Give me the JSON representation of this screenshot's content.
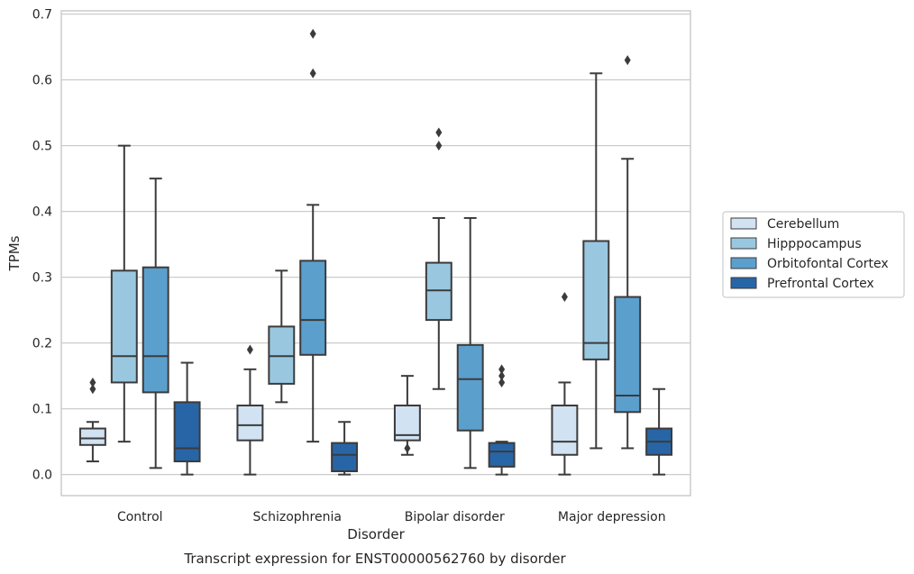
{
  "chart_data": {
    "type": "box",
    "title": "Transcript expression for ENST00000562760 by disorder",
    "xlabel": "Disorder",
    "ylabel": "TPMs",
    "ylim": [
      -0.032,
      0.705
    ],
    "yticks": [
      "0.0",
      "0.1",
      "0.2",
      "0.3",
      "0.4",
      "0.5",
      "0.6",
      "0.7"
    ],
    "grid": true,
    "legend_position": "right",
    "categories": [
      "Control",
      "Schizophrenia",
      "Bipolar disorder",
      "Major depression"
    ],
    "series": [
      {
        "name": "Cerebellum",
        "color": "#d1e2f2",
        "boxes": [
          {
            "whisker_low": 0.02,
            "q1": 0.045,
            "median": 0.055,
            "q3": 0.07,
            "whisker_high": 0.08,
            "outliers": [
              0.13,
              0.14
            ]
          },
          {
            "whisker_low": 0.0,
            "q1": 0.052,
            "median": 0.075,
            "q3": 0.105,
            "whisker_high": 0.16,
            "outliers": [
              0.19
            ]
          },
          {
            "whisker_low": 0.03,
            "q1": 0.052,
            "median": 0.06,
            "q3": 0.105,
            "whisker_high": 0.15,
            "outliers": [
              0.04
            ]
          },
          {
            "whisker_low": 0.0,
            "q1": 0.03,
            "median": 0.05,
            "q3": 0.105,
            "whisker_high": 0.14,
            "outliers": [
              0.27
            ]
          }
        ]
      },
      {
        "name": "Hipppocampus",
        "color": "#9ac7e0",
        "boxes": [
          {
            "whisker_low": 0.05,
            "q1": 0.14,
            "median": 0.18,
            "q3": 0.31,
            "whisker_high": 0.5,
            "outliers": []
          },
          {
            "whisker_low": 0.11,
            "q1": 0.138,
            "median": 0.18,
            "q3": 0.225,
            "whisker_high": 0.31,
            "outliers": []
          },
          {
            "whisker_low": 0.13,
            "q1": 0.235,
            "median": 0.28,
            "q3": 0.322,
            "whisker_high": 0.39,
            "outliers": [
              0.5,
              0.52
            ]
          },
          {
            "whisker_low": 0.04,
            "q1": 0.175,
            "median": 0.2,
            "q3": 0.355,
            "whisker_high": 0.61,
            "outliers": []
          }
        ]
      },
      {
        "name": "Orbitofontal Cortex",
        "color": "#5b9fcd",
        "boxes": [
          {
            "whisker_low": 0.01,
            "q1": 0.125,
            "median": 0.18,
            "q3": 0.315,
            "whisker_high": 0.45,
            "outliers": []
          },
          {
            "whisker_low": 0.05,
            "q1": 0.182,
            "median": 0.235,
            "q3": 0.325,
            "whisker_high": 0.41,
            "outliers": [
              0.61,
              0.67
            ]
          },
          {
            "whisker_low": 0.01,
            "q1": 0.067,
            "median": 0.145,
            "q3": 0.197,
            "whisker_high": 0.39,
            "outliers": []
          },
          {
            "whisker_low": 0.04,
            "q1": 0.095,
            "median": 0.12,
            "q3": 0.27,
            "whisker_high": 0.48,
            "outliers": [
              0.63
            ]
          }
        ]
      },
      {
        "name": "Prefrontal Cortex",
        "color": "#2865a6",
        "boxes": [
          {
            "whisker_low": 0.0,
            "q1": 0.02,
            "median": 0.04,
            "q3": 0.11,
            "whisker_high": 0.17,
            "outliers": []
          },
          {
            "whisker_low": 0.0,
            "q1": 0.005,
            "median": 0.03,
            "q3": 0.048,
            "whisker_high": 0.08,
            "outliers": []
          },
          {
            "whisker_low": 0.0,
            "q1": 0.012,
            "median": 0.035,
            "q3": 0.048,
            "whisker_high": 0.05,
            "outliers": [
              0.14,
              0.15,
              0.16
            ]
          },
          {
            "whisker_low": 0.0,
            "q1": 0.03,
            "median": 0.05,
            "q3": 0.07,
            "whisker_high": 0.13,
            "outliers": []
          }
        ]
      }
    ]
  }
}
